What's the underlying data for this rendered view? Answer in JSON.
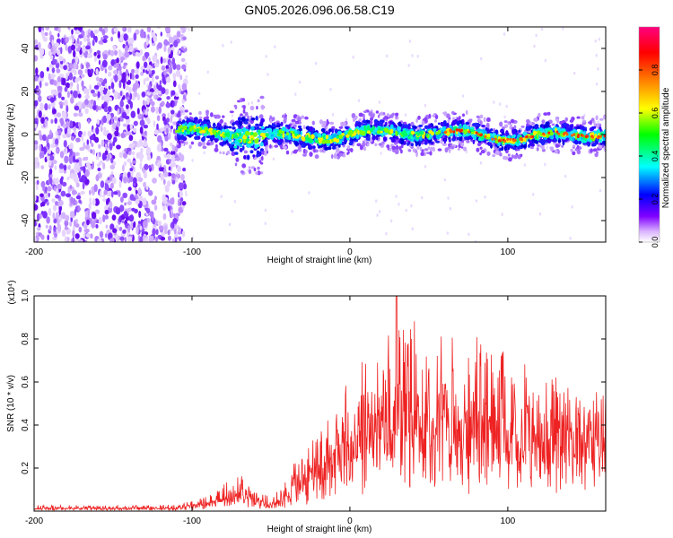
{
  "title": "GN05.2026.096.06.58.C19",
  "chart_data": [
    {
      "type": "heatmap",
      "name": "spectrogram",
      "xlabel": "Height of straight line (km)",
      "ylabel": "Frequency (Hz)",
      "xlim": [
        -200,
        162
      ],
      "ylim": [
        -50,
        50
      ],
      "xticks": [
        -200,
        -100,
        0,
        100
      ],
      "xtick_labels": [
        "-200",
        "-100",
        "0",
        "100"
      ],
      "yticks": [
        -40,
        -20,
        0,
        20,
        40
      ],
      "ytick_labels": [
        "-40",
        "-20",
        "0",
        "20",
        "40"
      ],
      "colorbar": {
        "label": "Normalized spectral amplitude",
        "range": [
          0,
          1
        ],
        "ticks": [
          0.0,
          0.2,
          0.4,
          0.6,
          0.8
        ],
        "tick_labels": [
          "0.0",
          "0.2",
          "0.4",
          "0.6",
          "0.8"
        ],
        "colors": [
          "#ffffff",
          "#8000ff",
          "#0000ff",
          "#00ffff",
          "#00ff00",
          "#ffff00",
          "#ff8000",
          "#ff0000",
          "#ff0080"
        ]
      },
      "features": {
        "noise_region_x": [
          -200,
          -108
        ],
        "signal_band_x": [
          -110,
          162
        ],
        "signal_center_hz": 0,
        "signal_halfwidth_hz": 5
      }
    },
    {
      "type": "line",
      "name": "snr",
      "xlabel": "Height of straight line (km)",
      "ylabel": "SNR (10 * v/v)",
      "scale_label": "(x10⁴)",
      "xlim": [
        -200,
        162
      ],
      "ylim": [
        0,
        1.0
      ],
      "xticks": [
        -200,
        -100,
        0,
        100
      ],
      "xtick_labels": [
        "-200",
        "-100",
        "0",
        "100"
      ],
      "yticks": [
        0.2,
        0.4,
        0.6,
        0.8,
        1.0
      ],
      "ytick_labels": [
        "0.2",
        "0.4",
        "0.6",
        "0.8",
        "1.0"
      ],
      "color": "#ee2222",
      "envelope": {
        "x": [
          -200,
          -110,
          -100,
          -85,
          -75,
          -70,
          -60,
          -50,
          -40,
          -30,
          -20,
          -10,
          0,
          10,
          20,
          30,
          40,
          60,
          80,
          100,
          120,
          140,
          162
        ],
        "base": [
          0.01,
          0.01,
          0.02,
          0.04,
          0.05,
          0.06,
          0.04,
          0.02,
          0.05,
          0.1,
          0.15,
          0.2,
          0.25,
          0.3,
          0.33,
          0.34,
          0.33,
          0.32,
          0.31,
          0.3,
          0.3,
          0.31,
          0.32
        ],
        "peak": [
          0.03,
          0.03,
          0.05,
          0.1,
          0.2,
          0.22,
          0.15,
          0.08,
          0.18,
          0.3,
          0.4,
          0.5,
          0.62,
          0.72,
          0.8,
          1.0,
          0.9,
          0.88,
          0.86,
          0.8,
          0.65,
          0.6,
          0.62
        ]
      }
    }
  ]
}
